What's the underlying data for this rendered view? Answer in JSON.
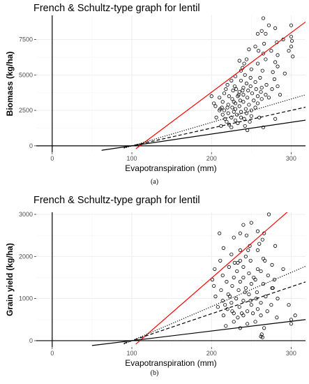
{
  "chart_data": [
    {
      "type": "scatter",
      "title": "French & Schultz-type graph for lentil",
      "xlabel": "Evapotranspiration (mm)",
      "ylabel": "Biomass (kg/ha)",
      "caption": "(a)",
      "xlim": [
        -20,
        318
      ],
      "ylim": [
        -450,
        9200
      ],
      "xticks": [
        0,
        100,
        200,
        300
      ],
      "yticks": [
        0,
        2500,
        5000,
        7500
      ],
      "grid": true,
      "vlines": [
        0
      ],
      "hlines": [
        0
      ],
      "lines": [
        {
          "name": "red",
          "color": "#ff0000",
          "dash": "solid",
          "x0": 110,
          "slope": 42
        },
        {
          "name": "dotted",
          "color": "#000000",
          "dash": "dotted",
          "x0": 100,
          "slope": 16.5
        },
        {
          "name": "dashed",
          "color": "#000000",
          "dash": "dashed",
          "x0": 100,
          "slope": 12.5
        },
        {
          "name": "solid",
          "color": "#000000",
          "dash": "solid",
          "x0": 100,
          "slope": 8.3,
          "xmin": 62
        }
      ],
      "points": [
        [
          265,
          9000
        ],
        [
          272,
          8500
        ],
        [
          263,
          8100
        ],
        [
          300,
          8500
        ],
        [
          280,
          8300
        ],
        [
          258,
          7900
        ],
        [
          268,
          7900
        ],
        [
          300,
          7700
        ],
        [
          290,
          7500
        ],
        [
          301,
          7400
        ],
        [
          282,
          7300
        ],
        [
          266,
          7200
        ],
        [
          255,
          7000
        ],
        [
          300,
          7000
        ],
        [
          247,
          6800
        ],
        [
          259,
          6700
        ],
        [
          275,
          6700
        ],
        [
          297,
          6700
        ],
        [
          265,
          6500
        ],
        [
          283,
          6400
        ],
        [
          302,
          6300
        ],
        [
          244,
          6100
        ],
        [
          268,
          6100
        ],
        [
          280,
          5900
        ],
        [
          235,
          6000
        ],
        [
          241,
          5800
        ],
        [
          258,
          5800
        ],
        [
          283,
          5600
        ],
        [
          239,
          5500
        ],
        [
          250,
          5400
        ],
        [
          237,
          5300
        ],
        [
          264,
          5300
        ],
        [
          277,
          5200
        ],
        [
          292,
          5100
        ],
        [
          242,
          5000
        ],
        [
          230,
          4900
        ],
        [
          249,
          4800
        ],
        [
          261,
          4800
        ],
        [
          279,
          4700
        ],
        [
          225,
          4600
        ],
        [
          237,
          4600
        ],
        [
          255,
          4500
        ],
        [
          244,
          4400
        ],
        [
          269,
          4300
        ],
        [
          220,
          4300
        ],
        [
          229,
          4200
        ],
        [
          249,
          4200
        ],
        [
          283,
          4200
        ],
        [
          263,
          4100
        ],
        [
          240,
          4100
        ],
        [
          218,
          4000
        ],
        [
          231,
          4000
        ],
        [
          256,
          4000
        ],
        [
          276,
          4000
        ],
        [
          227,
          3900
        ],
        [
          246,
          3900
        ],
        [
          262,
          3800
        ],
        [
          235,
          3800
        ],
        [
          216,
          3700
        ],
        [
          251,
          3700
        ],
        [
          240,
          3600
        ],
        [
          268,
          3600
        ],
        [
          222,
          3500
        ],
        [
          233,
          3500
        ],
        [
          258,
          3500
        ],
        [
          200,
          3500
        ],
        [
          210,
          3400
        ],
        [
          245,
          3400
        ],
        [
          263,
          3300
        ],
        [
          226,
          3300
        ],
        [
          236,
          3200
        ],
        [
          253,
          3200
        ],
        [
          214,
          3100
        ],
        [
          240,
          3100
        ],
        [
          203,
          3000
        ],
        [
          230,
          3000
        ],
        [
          258,
          3000
        ],
        [
          221,
          2900
        ],
        [
          247,
          2900
        ],
        [
          235,
          2800
        ],
        [
          205,
          2800
        ],
        [
          213,
          2700
        ],
        [
          226,
          2700
        ],
        [
          255,
          2700
        ],
        [
          243,
          2600
        ],
        [
          230,
          2600
        ],
        [
          250,
          2500
        ],
        [
          210,
          2500
        ],
        [
          237,
          2400
        ],
        [
          228,
          2400
        ],
        [
          221,
          2300
        ],
        [
          244,
          2300
        ],
        [
          214,
          2200
        ],
        [
          232,
          2200
        ],
        [
          250,
          2100
        ],
        [
          225,
          2000
        ],
        [
          237,
          2000
        ],
        [
          217,
          1900
        ],
        [
          241,
          1900
        ],
        [
          230,
          1800
        ],
        [
          219,
          1700
        ],
        [
          248,
          1700
        ],
        [
          233,
          1600
        ],
        [
          222,
          1500
        ],
        [
          242,
          1400
        ],
        [
          225,
          1300
        ],
        [
          265,
          1300
        ],
        [
          212,
          1400
        ],
        [
          239,
          3900
        ],
        [
          220,
          2700
        ],
        [
          280,
          1900
        ],
        [
          260,
          2000
        ],
        [
          245,
          1100
        ],
        [
          272,
          3400
        ],
        [
          286,
          3600
        ],
        [
          206,
          2000
        ],
        [
          234,
          3600
        ],
        [
          216,
          2500
        ],
        [
          228,
          3100
        ],
        [
          211,
          2600
        ]
      ]
    },
    {
      "type": "scatter",
      "title": "French & Schultz-type graph for lentil",
      "xlabel": "Evapotranspiration (mm)",
      "ylabel": "Grain yield (kg/ha)",
      "caption": "(b)",
      "xlim": [
        -20,
        318
      ],
      "ylim": [
        -150,
        3050
      ],
      "xticks": [
        0,
        100,
        200,
        300
      ],
      "yticks": [
        0,
        1000,
        2000,
        3000
      ],
      "grid": true,
      "vlines": [
        0
      ],
      "hlines": [
        0
      ],
      "lines": [
        {
          "name": "red",
          "color": "#ff0000",
          "dash": "solid",
          "x0": 110,
          "slope": 16.5
        },
        {
          "name": "dotted",
          "color": "#000000",
          "dash": "dotted",
          "x0": 100,
          "slope": 8.1
        },
        {
          "name": "dashed",
          "color": "#000000",
          "dash": "dashed",
          "x0": 100,
          "slope": 6.4
        },
        {
          "name": "solid",
          "color": "#000000",
          "dash": "solid",
          "x0": 100,
          "slope": 2.3,
          "xmin": 50
        }
      ],
      "points": [
        [
          272,
          3000
        ],
        [
          250,
          2800
        ],
        [
          240,
          2750
        ],
        [
          258,
          2600
        ],
        [
          266,
          2550
        ],
        [
          236,
          2550
        ],
        [
          244,
          2500
        ],
        [
          264,
          2400
        ],
        [
          228,
          2450
        ],
        [
          260,
          2300
        ],
        [
          248,
          2250
        ],
        [
          280,
          2250
        ],
        [
          215,
          2200
        ],
        [
          236,
          2150
        ],
        [
          258,
          2150
        ],
        [
          225,
          2050
        ],
        [
          243,
          2000
        ],
        [
          265,
          1950
        ],
        [
          211,
          1900
        ],
        [
          249,
          1900
        ],
        [
          233,
          1850
        ],
        [
          276,
          1800
        ],
        [
          222,
          1750
        ],
        [
          240,
          1750
        ],
        [
          258,
          1700
        ],
        [
          204,
          1700
        ],
        [
          232,
          1650
        ],
        [
          262,
          1650
        ],
        [
          247,
          1600
        ],
        [
          214,
          1550
        ],
        [
          271,
          1550
        ],
        [
          228,
          1500
        ],
        [
          240,
          1500
        ],
        [
          255,
          1450
        ],
        [
          279,
          1450
        ],
        [
          201,
          1450
        ],
        [
          219,
          1400
        ],
        [
          236,
          1400
        ],
        [
          250,
          1350
        ],
        [
          265,
          1350
        ],
        [
          203,
          1300
        ],
        [
          226,
          1300
        ],
        [
          243,
          1250
        ],
        [
          276,
          1250
        ],
        [
          212,
          1200
        ],
        [
          234,
          1200
        ],
        [
          257,
          1150
        ],
        [
          221,
          1100
        ],
        [
          247,
          1100
        ],
        [
          268,
          1050
        ],
        [
          205,
          1050
        ],
        [
          231,
          1000
        ],
        [
          256,
          1000
        ],
        [
          283,
          1000
        ],
        [
          214,
          950
        ],
        [
          240,
          950
        ],
        [
          262,
          900
        ],
        [
          225,
          900
        ],
        [
          250,
          850
        ],
        [
          275,
          850
        ],
        [
          208,
          800
        ],
        [
          235,
          800
        ],
        [
          258,
          750
        ],
        [
          220,
          750
        ],
        [
          245,
          700
        ],
        [
          270,
          700
        ],
        [
          228,
          650
        ],
        [
          252,
          650
        ],
        [
          215,
          600
        ],
        [
          240,
          600
        ],
        [
          262,
          600
        ],
        [
          233,
          550
        ],
        [
          305,
          600
        ],
        [
          300,
          500
        ],
        [
          255,
          450
        ],
        [
          228,
          450
        ],
        [
          245,
          400
        ],
        [
          218,
          350
        ],
        [
          266,
          300
        ],
        [
          236,
          300
        ],
        [
          263,
          150
        ],
        [
          262,
          100
        ],
        [
          264,
          80
        ],
        [
          210,
          2550
        ],
        [
          267,
          1900
        ],
        [
          242,
          1150
        ],
        [
          223,
          1050
        ],
        [
          253,
          1500
        ],
        [
          236,
          1900
        ],
        [
          290,
          1700
        ],
        [
          297,
          850
        ],
        [
          282,
          550
        ],
        [
          300,
          400
        ],
        [
          277,
          1250
        ],
        [
          238,
          650
        ],
        [
          229,
          1850
        ],
        [
          246,
          2150
        ],
        [
          217,
          850
        ],
        [
          226,
          700
        ],
        [
          249,
          950
        ]
      ]
    }
  ]
}
